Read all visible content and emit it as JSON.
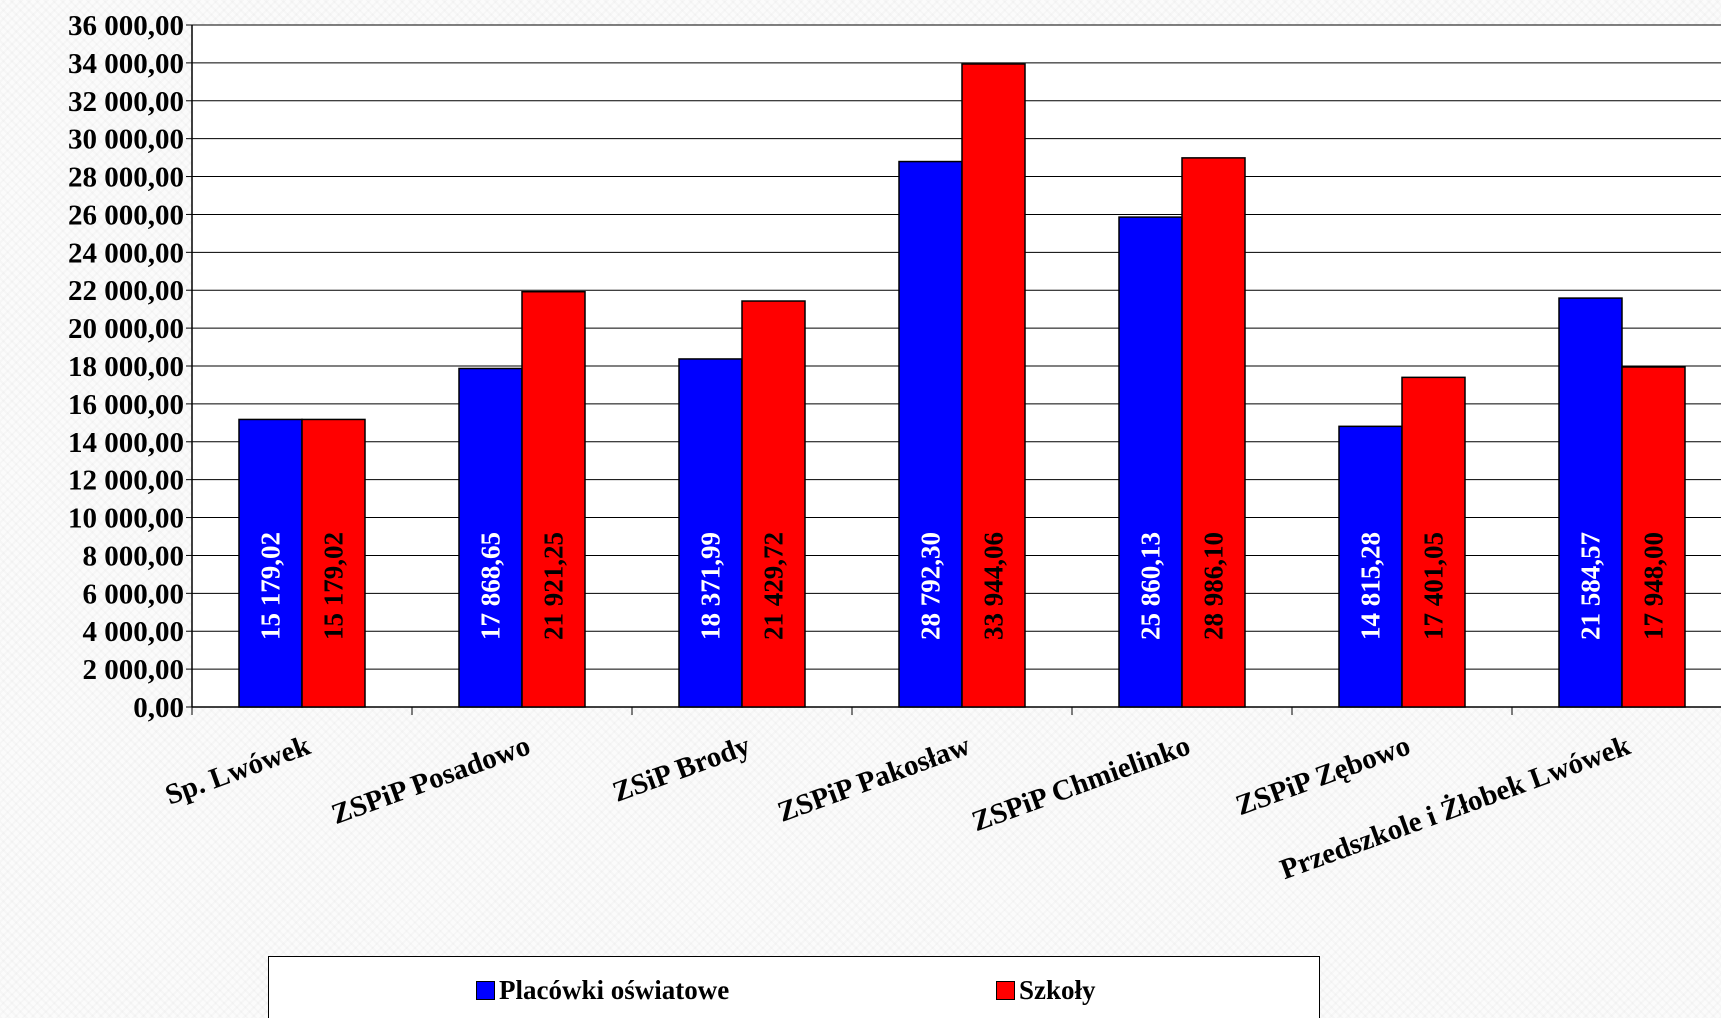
{
  "chart_data": {
    "type": "bar",
    "categories": [
      "Sp. Lwówek",
      "ZSPiP Posadowo",
      "ZSiP Brody",
      "ZSPiP Pakosław",
      "ZSPiP Chmielinko",
      "ZSPiP Zębowo",
      "Przedszkole i Żłobek Lwówek"
    ],
    "series": [
      {
        "name": "Placówki oświatowe",
        "color": "#0000ff",
        "label_color": "#ffffff",
        "values": [
          15179.02,
          17868.65,
          18371.99,
          28792.3,
          25860.13,
          14815.28,
          21584.57
        ],
        "labels": [
          "15 179,02",
          "17 868,65",
          "18 371,99",
          "28 792,30",
          "25 860,13",
          "14 815,28",
          "21 584,57"
        ]
      },
      {
        "name": "Szkoły",
        "color": "#ff0000",
        "label_color": "#000000",
        "values": [
          15179.02,
          21921.25,
          21429.72,
          33944.06,
          28986.1,
          17401.05,
          17948.0
        ],
        "labels": [
          "15 179,02",
          "21 921,25",
          "21 429,72",
          "33 944,06",
          "28 986,10",
          "17 401,05",
          "17 948,00"
        ]
      }
    ],
    "y_ticks": [
      "0,00",
      "2 000,00",
      "4 000,00",
      "6 000,00",
      "8 000,00",
      "10 000,00",
      "12 000,00",
      "14 000,00",
      "16 000,00",
      "18 000,00",
      "20 000,00",
      "22 000,00",
      "24 000,00",
      "26 000,00",
      "28 000,00",
      "30 000,00",
      "32 000,00",
      "34 000,00",
      "36 000,00"
    ],
    "ylim": [
      0,
      36000
    ],
    "y_step": 2000,
    "grid": true,
    "legend_position": "bottom",
    "title": "",
    "xlabel": "",
    "ylabel": ""
  }
}
